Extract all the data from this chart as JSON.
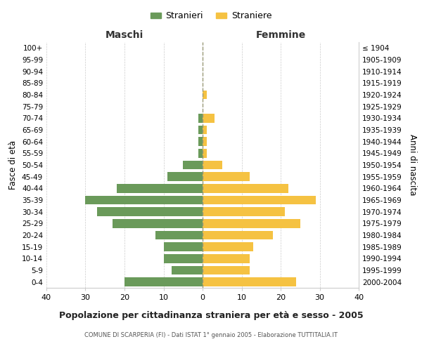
{
  "age_groups": [
    "0-4",
    "5-9",
    "10-14",
    "15-19",
    "20-24",
    "25-29",
    "30-34",
    "35-39",
    "40-44",
    "45-49",
    "50-54",
    "55-59",
    "60-64",
    "65-69",
    "70-74",
    "75-79",
    "80-84",
    "85-89",
    "90-94",
    "95-99",
    "100+"
  ],
  "birth_years": [
    "2000-2004",
    "1995-1999",
    "1990-1994",
    "1985-1989",
    "1980-1984",
    "1975-1979",
    "1970-1974",
    "1965-1969",
    "1960-1964",
    "1955-1959",
    "1950-1954",
    "1945-1949",
    "1940-1944",
    "1935-1939",
    "1930-1934",
    "1925-1929",
    "1920-1924",
    "1915-1919",
    "1910-1914",
    "1905-1909",
    "≤ 1904"
  ],
  "males": [
    20,
    8,
    10,
    10,
    12,
    23,
    27,
    30,
    22,
    9,
    5,
    1,
    1,
    1,
    1,
    0,
    0,
    0,
    0,
    0,
    0
  ],
  "females": [
    24,
    12,
    12,
    13,
    18,
    25,
    21,
    29,
    22,
    12,
    5,
    1,
    1,
    1,
    3,
    0,
    1,
    0,
    0,
    0,
    0
  ],
  "male_color": "#6a9a5a",
  "female_color": "#f5c242",
  "background_color": "#ffffff",
  "grid_color": "#cccccc",
  "title": "Popolazione per cittadinanza straniera per età e sesso - 2005",
  "subtitle": "COMUNE DI SCARPERIA (FI) - Dati ISTAT 1° gennaio 2005 - Elaborazione TUTTITALIA.IT",
  "xlabel_left": "Maschi",
  "xlabel_right": "Femmine",
  "ylabel_left": "Fasce di età",
  "ylabel_right": "Anni di nascita",
  "legend_maschi": "Stranieri",
  "legend_femmine": "Straniere",
  "xlim": 40,
  "xticks": [
    -40,
    -30,
    -20,
    -10,
    0,
    10,
    20,
    30,
    40
  ],
  "xticklabels": [
    "40",
    "30",
    "20",
    "10",
    "0",
    "10",
    "20",
    "30",
    "40"
  ],
  "bar_height": 0.75,
  "center_line_color": "#999977",
  "center_line_style": "--"
}
